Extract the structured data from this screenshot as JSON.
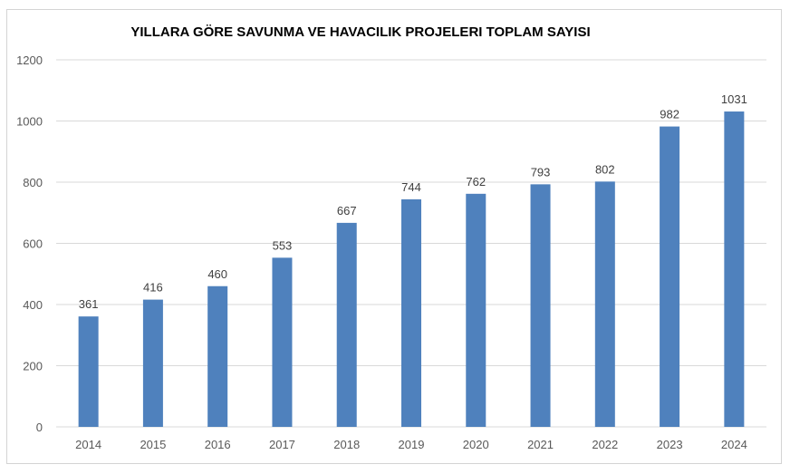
{
  "chart_data": {
    "type": "bar",
    "title": "YILLARA GÖRE SAVUNMA VE HAVACILIK PROJELERI TOPLAM SAYISI",
    "xlabel": "",
    "ylabel": "",
    "categories": [
      "2014",
      "2015",
      "2016",
      "2017",
      "2018",
      "2019",
      "2020",
      "2021",
      "2022",
      "2023",
      "2024"
    ],
    "values": [
      361,
      416,
      460,
      553,
      667,
      744,
      762,
      793,
      802,
      982,
      1031
    ],
    "value_labels": [
      "361",
      "416",
      "460",
      "553",
      "667",
      "744",
      "762",
      "793",
      "802",
      "982",
      "1031"
    ],
    "ylim": [
      0,
      1200
    ],
    "yticks": [
      0,
      200,
      400,
      600,
      800,
      1000,
      1200
    ],
    "ytick_labels": [
      "0",
      "200",
      "400",
      "600",
      "800",
      "1000",
      "1200"
    ],
    "grid": true,
    "legend": "none",
    "bar_color": "#4f81bd",
    "grid_color": "#d9d9d9",
    "axis_label_color": "#595959"
  }
}
